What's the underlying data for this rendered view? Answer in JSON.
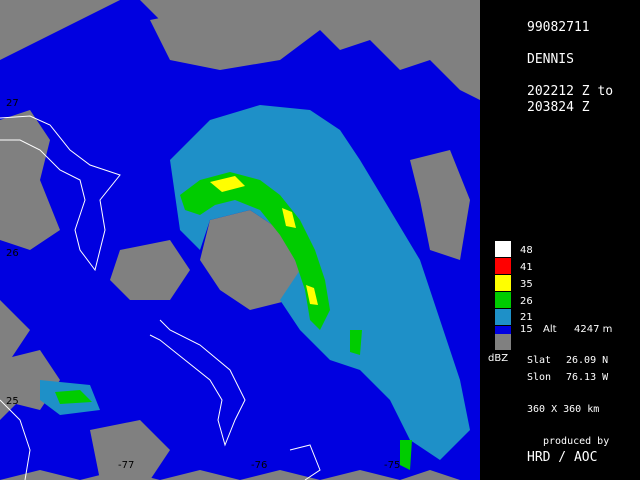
{
  "header": {
    "date_code": "99082711",
    "storm_name": "DENNIS",
    "time_start": "202212 Z to",
    "time_end": "203824 Z"
  },
  "legend": {
    "unit": "dBZ",
    "entries": [
      {
        "label": "48",
        "color": "#ffffff"
      },
      {
        "label": "41",
        "color": "#ff0000"
      },
      {
        "label": "35",
        "color": "#ffff00"
      },
      {
        "label": "26",
        "color": "#00cc00"
      },
      {
        "label": "21",
        "color": "#1e90c8"
      },
      {
        "label": "15",
        "color": "#0000e0"
      },
      {
        "label": "",
        "color": "#808080"
      }
    ],
    "alt_label": "Alt",
    "alt_value": "4247 m"
  },
  "position": {
    "slat_label": "Slat",
    "slat_value": "26.09 N",
    "slon_label": "Slon",
    "slon_value": "76.13 W"
  },
  "domain_size": "360 X 360 km",
  "credit": {
    "line1": "produced by",
    "line2": "HRD / AOC"
  },
  "axes": {
    "lat_ticks": [
      "27",
      "26",
      "25"
    ],
    "lon_ticks": [
      "-77",
      "-76",
      "-75"
    ]
  },
  "colors": {
    "background": "#808080",
    "reflectivity_15": "#0000e0",
    "reflectivity_21": "#1e90c8",
    "reflectivity_26": "#00cc00",
    "reflectivity_35": "#ffff00",
    "reflectivity_41": "#ff0000",
    "reflectivity_48": "#ffffff",
    "coastline": "#ffffff"
  }
}
